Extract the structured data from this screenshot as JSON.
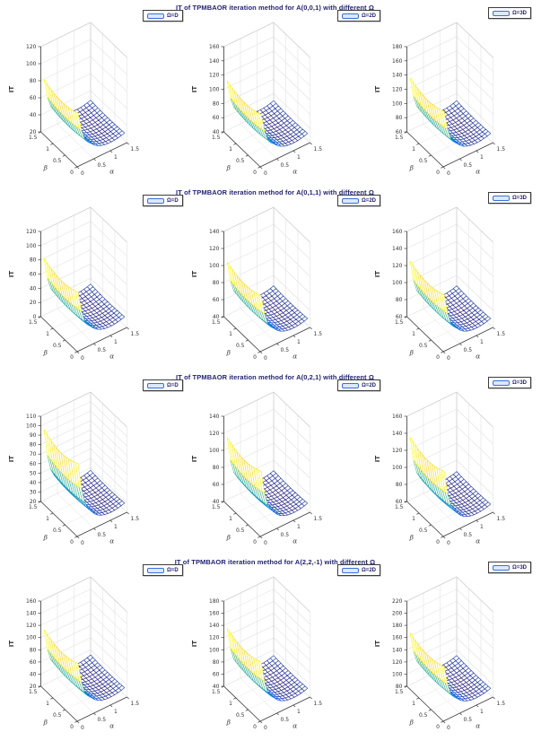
{
  "figure_kind": "matlab-style 3D mesh surface figure, 4 rows x 3 columns",
  "colors": {
    "title_text": "#232378",
    "legend_text": "#1c1c6e",
    "legend_patch_border": "#3a6fd8",
    "legend_patch_fill": "#dce9fb",
    "axis": "#3a3a3a",
    "grid": "#e2e2e2",
    "colormap": "parula (blue low -> yellow high)"
  },
  "chart_data": [
    {
      "type": "surface",
      "row": 1,
      "col": 1,
      "title": "IT of TPMBAOR iteration method for A(0,0,1) with different Ω",
      "legend": "Ω=D",
      "xlabel": "α",
      "ylabel": "β",
      "zlabel": "IT",
      "x_ticks": [
        0,
        0.5,
        1,
        1.5
      ],
      "y_ticks": [
        0,
        0.5,
        1,
        1.5
      ],
      "z_ticks": [
        20,
        40,
        60,
        80,
        100,
        120
      ],
      "zlim": [
        20,
        120
      ],
      "x_range": [
        0,
        1.5
      ],
      "y_range": [
        0,
        1.5
      ],
      "z_max_estimate": 78,
      "z_min_estimate": 24,
      "shape": "IT very high near α≈0 (yellow ridge along β), drops steeply to a flat low plateau (blue) for α>0.4"
    },
    {
      "type": "surface",
      "row": 1,
      "col": 2,
      "title": "IT of TPMBAOR iteration method for A(0,0,1) with different Ω",
      "legend": "Ω=2D",
      "xlabel": "α",
      "ylabel": "β",
      "zlabel": "IT",
      "x_ticks": [
        0,
        0.5,
        1,
        1.5
      ],
      "y_ticks": [
        0,
        0.5,
        1,
        1.5
      ],
      "z_ticks": [
        40,
        60,
        80,
        100,
        120,
        140,
        160
      ],
      "zlim": [
        40,
        160
      ],
      "x_range": [
        0,
        1.5
      ],
      "y_range": [
        0,
        1.5
      ],
      "z_max_estimate": 108,
      "z_min_estimate": 44,
      "shape": "steep yellow wall at small α, low blue plateau at larger α"
    },
    {
      "type": "surface",
      "row": 1,
      "col": 3,
      "title": "IT of TPMBAOR iteration method for A(0,0,1) with different Ω",
      "legend": "Ω=3D",
      "xlabel": "α",
      "ylabel": "β",
      "zlabel": "IT",
      "x_ticks": [
        0,
        0.5,
        1,
        1.5
      ],
      "y_ticks": [
        0,
        0.5,
        1,
        1.5
      ],
      "z_ticks": [
        60,
        80,
        100,
        120,
        140,
        160,
        180
      ],
      "zlim": [
        60,
        180
      ],
      "x_range": [
        0,
        1.5
      ],
      "y_range": [
        0,
        1.5
      ],
      "z_max_estimate": 132,
      "z_min_estimate": 64,
      "shape": "steep yellow wall at small α, low blue plateau at larger α"
    },
    {
      "type": "surface",
      "row": 2,
      "col": 1,
      "title": "IT of TPMBAOR iteration method for A(0,1,1) with different Ω",
      "legend": "Ω=D",
      "xlabel": "α",
      "ylabel": "β",
      "zlabel": "IT",
      "x_ticks": [
        0,
        0.5,
        1,
        1.5
      ],
      "y_ticks": [
        0,
        0.5,
        1,
        1.5
      ],
      "z_ticks": [
        0,
        20,
        40,
        60,
        80,
        100,
        120
      ],
      "zlim": [
        0,
        120
      ],
      "x_range": [
        0,
        1.5
      ],
      "y_range": [
        0,
        1.5
      ],
      "z_max_estimate": 78,
      "z_min_estimate": 6,
      "shape": "steep yellow wall at small α, low blue plateau at larger α"
    },
    {
      "type": "surface",
      "row": 2,
      "col": 2,
      "title": "IT of TPMBAOR iteration method for A(0,1,1) with different Ω",
      "legend": "Ω=2D",
      "xlabel": "α",
      "ylabel": "β",
      "zlabel": "IT",
      "x_ticks": [
        0,
        0.5,
        1,
        1.5
      ],
      "y_ticks": [
        0,
        0.5,
        1,
        1.5
      ],
      "z_ticks": [
        40,
        60,
        80,
        100,
        120,
        140
      ],
      "zlim": [
        40,
        140
      ],
      "x_range": [
        0,
        1.5
      ],
      "y_range": [
        0,
        1.5
      ],
      "z_max_estimate": 101,
      "z_min_estimate": 43,
      "shape": "steep yellow wall at small α, low blue plateau at larger α"
    },
    {
      "type": "surface",
      "row": 2,
      "col": 3,
      "title": "IT of TPMBAOR iteration method for A(0,1,1) with different Ω",
      "legend": "Ω=3D",
      "xlabel": "α",
      "ylabel": "β",
      "zlabel": "IT",
      "x_ticks": [
        0,
        0.5,
        1,
        1.5
      ],
      "y_ticks": [
        0,
        0.5,
        1,
        1.5
      ],
      "z_ticks": [
        60,
        80,
        100,
        120,
        140,
        160
      ],
      "zlim": [
        60,
        160
      ],
      "x_range": [
        0,
        1.5
      ],
      "y_range": [
        0,
        1.5
      ],
      "z_max_estimate": 122,
      "z_min_estimate": 63,
      "shape": "steep yellow wall at small α, low blue plateau at larger α"
    },
    {
      "type": "surface",
      "row": 3,
      "col": 1,
      "title": "IT of TPMBAOR iteration method for A(0,2,1) with different Ω",
      "legend": "Ω=D",
      "xlabel": "α",
      "ylabel": "β",
      "zlabel": "IT",
      "x_ticks": [
        0,
        0.5,
        1,
        1.5
      ],
      "y_ticks": [
        0,
        0.5,
        1,
        1.5
      ],
      "z_ticks": [
        20,
        30,
        40,
        50,
        60,
        70,
        80,
        90,
        100,
        110
      ],
      "zlim": [
        20,
        110
      ],
      "x_range": [
        0,
        1.5
      ],
      "y_range": [
        0,
        1.5
      ],
      "z_max_estimate": 93,
      "z_min_estimate": 23,
      "shape": "tall steep yellow wall at small α, low blue plateau at larger α"
    },
    {
      "type": "surface",
      "row": 3,
      "col": 2,
      "title": "IT of TPMBAOR iteration method for A(0,2,1) with different Ω",
      "legend": "Ω=2D",
      "xlabel": "α",
      "ylabel": "β",
      "zlabel": "IT",
      "x_ticks": [
        0,
        0.5,
        1,
        1.5
      ],
      "y_ticks": [
        0,
        0.5,
        1,
        1.5
      ],
      "z_ticks": [
        40,
        60,
        80,
        100,
        120,
        140
      ],
      "zlim": [
        40,
        140
      ],
      "x_range": [
        0,
        1.5
      ],
      "y_range": [
        0,
        1.5
      ],
      "z_max_estimate": 112,
      "z_min_estimate": 43,
      "shape": "steep yellow wall at small α, low blue plateau at larger α"
    },
    {
      "type": "surface",
      "row": 3,
      "col": 3,
      "title": "IT of TPMBAOR iteration method for A(0,2,1) with different Ω",
      "legend": "Ω=3D",
      "xlabel": "α",
      "ylabel": "β",
      "zlabel": "IT",
      "x_ticks": [
        0,
        0.5,
        1,
        1.5
      ],
      "y_ticks": [
        0,
        0.5,
        1,
        1.5
      ],
      "z_ticks": [
        60,
        80,
        100,
        120,
        140,
        160
      ],
      "zlim": [
        60,
        160
      ],
      "x_range": [
        0,
        1.5
      ],
      "y_range": [
        0,
        1.5
      ],
      "z_max_estimate": 132,
      "z_min_estimate": 62,
      "shape": "steep yellow wall at small α, low blue plateau at larger α"
    },
    {
      "type": "surface",
      "row": 4,
      "col": 1,
      "title": "IT of TPMBAOR iteration method for A(2,2,-1) with different Ω",
      "legend": "Ω=D",
      "xlabel": "α",
      "ylabel": "β",
      "zlabel": "IT",
      "x_ticks": [
        0,
        0.5,
        1,
        1.5
      ],
      "y_ticks": [
        0,
        0.5,
        1,
        1.5
      ],
      "z_ticks": [
        20,
        40,
        60,
        80,
        100,
        120,
        140,
        160
      ],
      "zlim": [
        20,
        160
      ],
      "x_range": [
        0,
        1.5
      ],
      "y_range": [
        0,
        1.5
      ],
      "z_max_estimate": 108,
      "z_min_estimate": 25,
      "shape": "steep yellow wall at small α, low blue plateau at larger α"
    },
    {
      "type": "surface",
      "row": 4,
      "col": 2,
      "title": "IT of TPMBAOR iteration method for A(2,2,-1) with different Ω",
      "legend": "Ω=2D",
      "xlabel": "α",
      "ylabel": "β",
      "zlabel": "IT",
      "x_ticks": [
        0,
        0.5,
        1,
        1.5
      ],
      "y_ticks": [
        0,
        0.5,
        1,
        1.5
      ],
      "z_ticks": [
        40,
        60,
        80,
        100,
        120,
        140,
        160,
        180
      ],
      "zlim": [
        40,
        180
      ],
      "x_range": [
        0,
        1.5
      ],
      "y_range": [
        0,
        1.5
      ],
      "z_max_estimate": 131,
      "z_min_estimate": 44,
      "shape": "steep yellow wall at small α, low blue plateau at larger α"
    },
    {
      "type": "surface",
      "row": 4,
      "col": 3,
      "title": "IT of TPMBAOR iteration method for A(2,2,-1) with different Ω",
      "legend": "Ω=3D",
      "xlabel": "α",
      "ylabel": "β",
      "zlabel": "IT",
      "x_ticks": [
        0,
        0.5,
        1,
        1.5
      ],
      "y_ticks": [
        0,
        0.5,
        1,
        1.5
      ],
      "z_ticks": [
        80,
        100,
        120,
        140,
        160,
        180,
        200,
        220
      ],
      "zlim": [
        80,
        220
      ],
      "x_range": [
        0,
        1.5
      ],
      "y_range": [
        0,
        1.5
      ],
      "z_max_estimate": 163,
      "z_min_estimate": 84,
      "shape": "steep yellow wall at small α, low blue plateau at larger α"
    }
  ]
}
